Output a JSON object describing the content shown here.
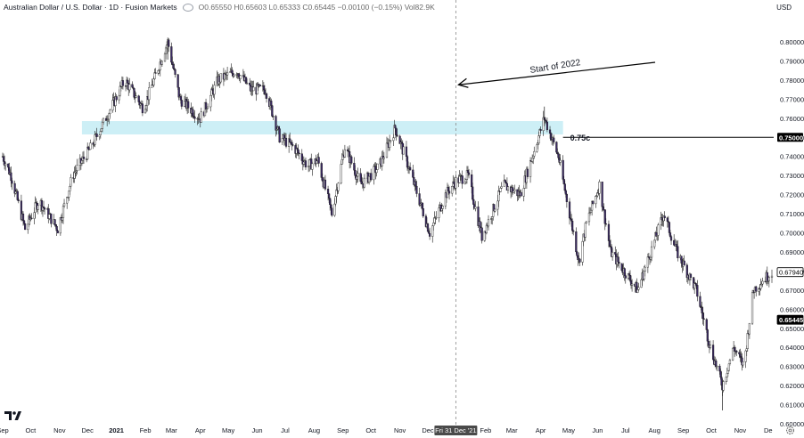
{
  "header": {
    "symbol": "Australian Dollar / U.S. Dollar · 1D · Fusion Markets",
    "ohlc": "O0.65550 H0.65603 L0.65333 C0.65445 −0.00100 (−0.15%) Vol82.9K",
    "currency": "USD"
  },
  "icons": {
    "visibility": "eye-icon",
    "logo": "tradingview-logo",
    "settings": "gear-icon"
  },
  "colors": {
    "up": "#ffffff",
    "down": "#3b2a63",
    "zone": "#cdeff6",
    "line": "#000000",
    "crosshair": "#888888"
  },
  "chart_data": {
    "type": "candlestick",
    "title": "Australian Dollar / U.S. Dollar · 1D · Fusion Markets",
    "ylabel": "USD",
    "ylim": [
      0.6,
      0.81
    ],
    "y_ticks": [
      "0.80000",
      "0.79000",
      "0.78000",
      "0.77000",
      "0.76000",
      "0.75000",
      "0.74000",
      "0.73000",
      "0.72000",
      "0.71000",
      "0.70000",
      "0.69000",
      "0.68000",
      "0.67000",
      "0.66000",
      "0.65000",
      "0.64000",
      "0.63000",
      "0.62000",
      "0.61000",
      "0.60000"
    ],
    "x_ticks": [
      "Sep",
      "Oct",
      "Nov",
      "Dec",
      "2021",
      "Feb",
      "Mar",
      "Apr",
      "May",
      "Jun",
      "Jul",
      "Aug",
      "Sep",
      "Oct",
      "Nov",
      "Dec",
      "Feb",
      "Mar",
      "Apr",
      "May",
      "Jun",
      "Jul",
      "Aug",
      "Sep",
      "Oct",
      "Nov",
      "De"
    ],
    "price_path": {
      "start": "2020-09-01",
      "end": "2022-12-05",
      "key_points": [
        [
          "2020-09-01",
          0.74
        ],
        [
          "2020-09-10",
          0.73
        ],
        [
          "2020-09-25",
          0.702
        ],
        [
          "2020-10-10",
          0.717
        ],
        [
          "2020-10-30",
          0.702
        ],
        [
          "2020-11-15",
          0.73
        ],
        [
          "2020-12-05",
          0.745
        ],
        [
          "2020-12-31",
          0.77
        ],
        [
          "2021-01-10",
          0.78
        ],
        [
          "2021-01-30",
          0.765
        ],
        [
          "2021-02-25",
          0.8
        ],
        [
          "2021-03-10",
          0.77
        ],
        [
          "2021-04-01",
          0.76
        ],
        [
          "2021-04-20",
          0.78
        ],
        [
          "2021-05-10",
          0.785
        ],
        [
          "2021-05-25",
          0.775
        ],
        [
          "2021-06-10",
          0.775
        ],
        [
          "2021-06-25",
          0.75
        ],
        [
          "2021-07-10",
          0.745
        ],
        [
          "2021-07-25",
          0.735
        ],
        [
          "2021-08-05",
          0.738
        ],
        [
          "2021-08-20",
          0.71
        ],
        [
          "2021-09-03",
          0.745
        ],
        [
          "2021-09-20",
          0.725
        ],
        [
          "2021-10-10",
          0.735
        ],
        [
          "2021-10-27",
          0.755
        ],
        [
          "2021-11-10",
          0.735
        ],
        [
          "2021-12-03",
          0.7
        ],
        [
          "2021-12-20",
          0.72
        ],
        [
          "2021-12-31",
          0.727
        ],
        [
          "2022-01-13",
          0.73
        ],
        [
          "2022-01-28",
          0.698
        ],
        [
          "2022-02-20",
          0.725
        ],
        [
          "2022-03-10",
          0.72
        ],
        [
          "2022-04-05",
          0.76
        ],
        [
          "2022-04-20",
          0.74
        ],
        [
          "2022-05-12",
          0.685
        ],
        [
          "2022-05-20",
          0.705
        ],
        [
          "2022-06-03",
          0.725
        ],
        [
          "2022-06-15",
          0.69
        ],
        [
          "2022-07-14",
          0.67
        ],
        [
          "2022-08-11",
          0.71
        ],
        [
          "2022-08-25",
          0.69
        ],
        [
          "2022-09-15",
          0.67
        ],
        [
          "2022-09-30",
          0.64
        ],
        [
          "2022-10-13",
          0.62
        ],
        [
          "2022-10-25",
          0.64
        ],
        [
          "2022-11-05",
          0.63
        ],
        [
          "2022-11-15",
          0.67
        ],
        [
          "2022-11-25",
          0.675
        ],
        [
          "2022-12-05",
          0.6794
        ]
      ],
      "extremes": [
        [
          "2021-02-25",
          0.8007
        ],
        [
          "2022-04-05",
          0.7661
        ],
        [
          "2022-10-13",
          0.617
        ]
      ]
    },
    "zone": {
      "from": "2020-11-25",
      "to": "2022-04-25",
      "y_low": 0.7515,
      "y_high": 0.7585
    },
    "level_line": {
      "from": "2022-04-25",
      "value": 0.75,
      "label": "0.75c",
      "axis_label": "0.75000"
    },
    "annotation": {
      "text": "Start of 2022",
      "arrow_to": [
        "2021-12-31",
        0.7775
      ]
    },
    "crosshair": {
      "date": "2021-12-31",
      "label": "Fri 31 Dec '21"
    },
    "price_labels": [
      {
        "value": 0.6794,
        "text": "0.67940",
        "style": "outline"
      },
      {
        "value": 0.65445,
        "text": "0.65445",
        "style": "filled"
      }
    ]
  }
}
